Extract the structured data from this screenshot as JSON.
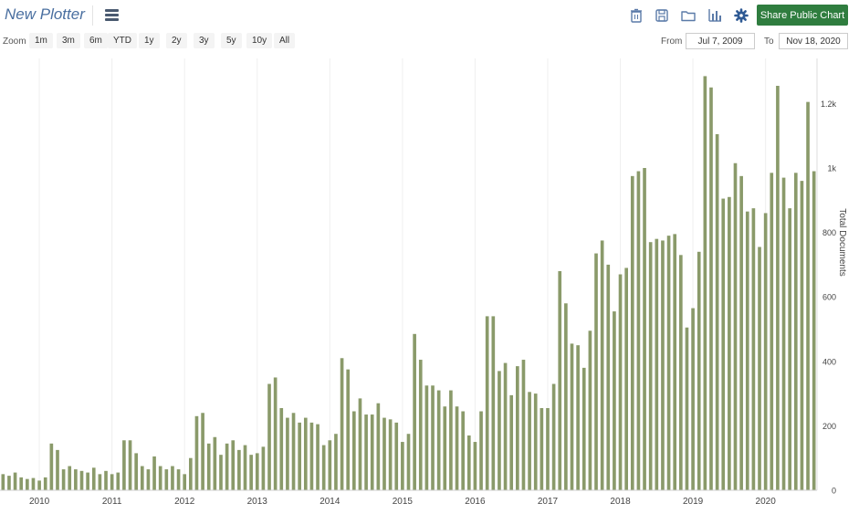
{
  "app": {
    "title": "New Plotter"
  },
  "toolbar": {
    "icons": [
      "trash-icon",
      "save-icon",
      "folder-icon",
      "bar-chart-icon",
      "gear-icon"
    ],
    "share_label": "Share Public Chart"
  },
  "zoom": {
    "label": "Zoom",
    "buttons": [
      "1m",
      "3m",
      "6m",
      "YTD",
      "1y",
      "2y",
      "3y",
      "5y",
      "10y",
      "All"
    ]
  },
  "range": {
    "from_label": "From",
    "from_value": "Jul 7, 2009",
    "to_label": "To",
    "to_value": "Nov 18, 2020"
  },
  "colors": {
    "bar": "#8a9a6a",
    "accent": "#2f7d3f",
    "title": "#4a6fa0"
  },
  "chart_data": {
    "type": "bar",
    "ylabel": "Total Documents",
    "ylim": [
      0,
      1340
    ],
    "yticks": [
      0,
      200,
      400,
      600,
      800,
      1000,
      1200
    ],
    "ytick_labels": [
      "0",
      "200",
      "400",
      "600",
      "800",
      "1k",
      "1.2k"
    ],
    "xlim": [
      "2009-07",
      "2020-09"
    ],
    "xticks": [
      "2010",
      "2011",
      "2012",
      "2013",
      "2014",
      "2015",
      "2016",
      "2017",
      "2018",
      "2019",
      "2020"
    ],
    "grid": "vertical",
    "x": [
      "2009-07",
      "2009-08",
      "2009-09",
      "2009-10",
      "2009-11",
      "2009-12",
      "2010-01",
      "2010-02",
      "2010-03",
      "2010-04",
      "2010-05",
      "2010-06",
      "2010-07",
      "2010-08",
      "2010-09",
      "2010-10",
      "2010-11",
      "2010-12",
      "2011-01",
      "2011-02",
      "2011-03",
      "2011-04",
      "2011-05",
      "2011-06",
      "2011-07",
      "2011-08",
      "2011-09",
      "2011-10",
      "2011-11",
      "2011-12",
      "2012-01",
      "2012-02",
      "2012-03",
      "2012-04",
      "2012-05",
      "2012-06",
      "2012-07",
      "2012-08",
      "2012-09",
      "2012-10",
      "2012-11",
      "2012-12",
      "2013-01",
      "2013-02",
      "2013-03",
      "2013-04",
      "2013-05",
      "2013-06",
      "2013-07",
      "2013-08",
      "2013-09",
      "2013-10",
      "2013-11",
      "2013-12",
      "2014-01",
      "2014-02",
      "2014-03",
      "2014-04",
      "2014-05",
      "2014-06",
      "2014-07",
      "2014-08",
      "2014-09",
      "2014-10",
      "2014-11",
      "2014-12",
      "2015-01",
      "2015-02",
      "2015-03",
      "2015-04",
      "2015-05",
      "2015-06",
      "2015-07",
      "2015-08",
      "2015-09",
      "2015-10",
      "2015-11",
      "2015-12",
      "2016-01",
      "2016-02",
      "2016-03",
      "2016-04",
      "2016-05",
      "2016-06",
      "2016-07",
      "2016-08",
      "2016-09",
      "2016-10",
      "2016-11",
      "2016-12",
      "2017-01",
      "2017-02",
      "2017-03",
      "2017-04",
      "2017-05",
      "2017-06",
      "2017-07",
      "2017-08",
      "2017-09",
      "2017-10",
      "2017-11",
      "2017-12",
      "2018-01",
      "2018-02",
      "2018-03",
      "2018-04",
      "2018-05",
      "2018-06",
      "2018-07",
      "2018-08",
      "2018-09",
      "2018-10",
      "2018-11",
      "2018-12",
      "2019-01",
      "2019-02",
      "2019-03",
      "2019-04",
      "2019-05",
      "2019-06",
      "2019-07",
      "2019-08",
      "2019-09",
      "2019-10",
      "2019-11",
      "2019-12",
      "2020-01",
      "2020-02",
      "2020-03",
      "2020-04",
      "2020-05",
      "2020-06",
      "2020-07",
      "2020-08",
      "2020-09"
    ],
    "values": [
      50,
      45,
      55,
      40,
      35,
      38,
      30,
      40,
      145,
      125,
      65,
      75,
      65,
      60,
      55,
      70,
      50,
      60,
      50,
      55,
      155,
      155,
      115,
      75,
      65,
      105,
      75,
      65,
      75,
      65,
      50,
      100,
      230,
      240,
      145,
      165,
      110,
      145,
      155,
      125,
      140,
      110,
      115,
      135,
      330,
      350,
      255,
      225,
      240,
      210,
      225,
      210,
      205,
      140,
      155,
      175,
      410,
      375,
      245,
      285,
      235,
      235,
      270,
      225,
      220,
      210,
      150,
      175,
      485,
      405,
      325,
      325,
      310,
      260,
      310,
      260,
      245,
      170,
      150,
      245,
      540,
      540,
      370,
      395,
      295,
      385,
      405,
      305,
      300,
      255,
      255,
      330,
      680,
      580,
      455,
      450,
      380,
      495,
      735,
      775,
      700,
      555,
      670,
      690,
      975,
      990,
      1000,
      770,
      780,
      775,
      790,
      795,
      730,
      505,
      565,
      740,
      1285,
      1250,
      1105,
      905,
      910,
      1015,
      975,
      865,
      875,
      755,
      860,
      985,
      1255,
      970,
      875,
      985,
      960,
      1205,
      990
    ]
  }
}
